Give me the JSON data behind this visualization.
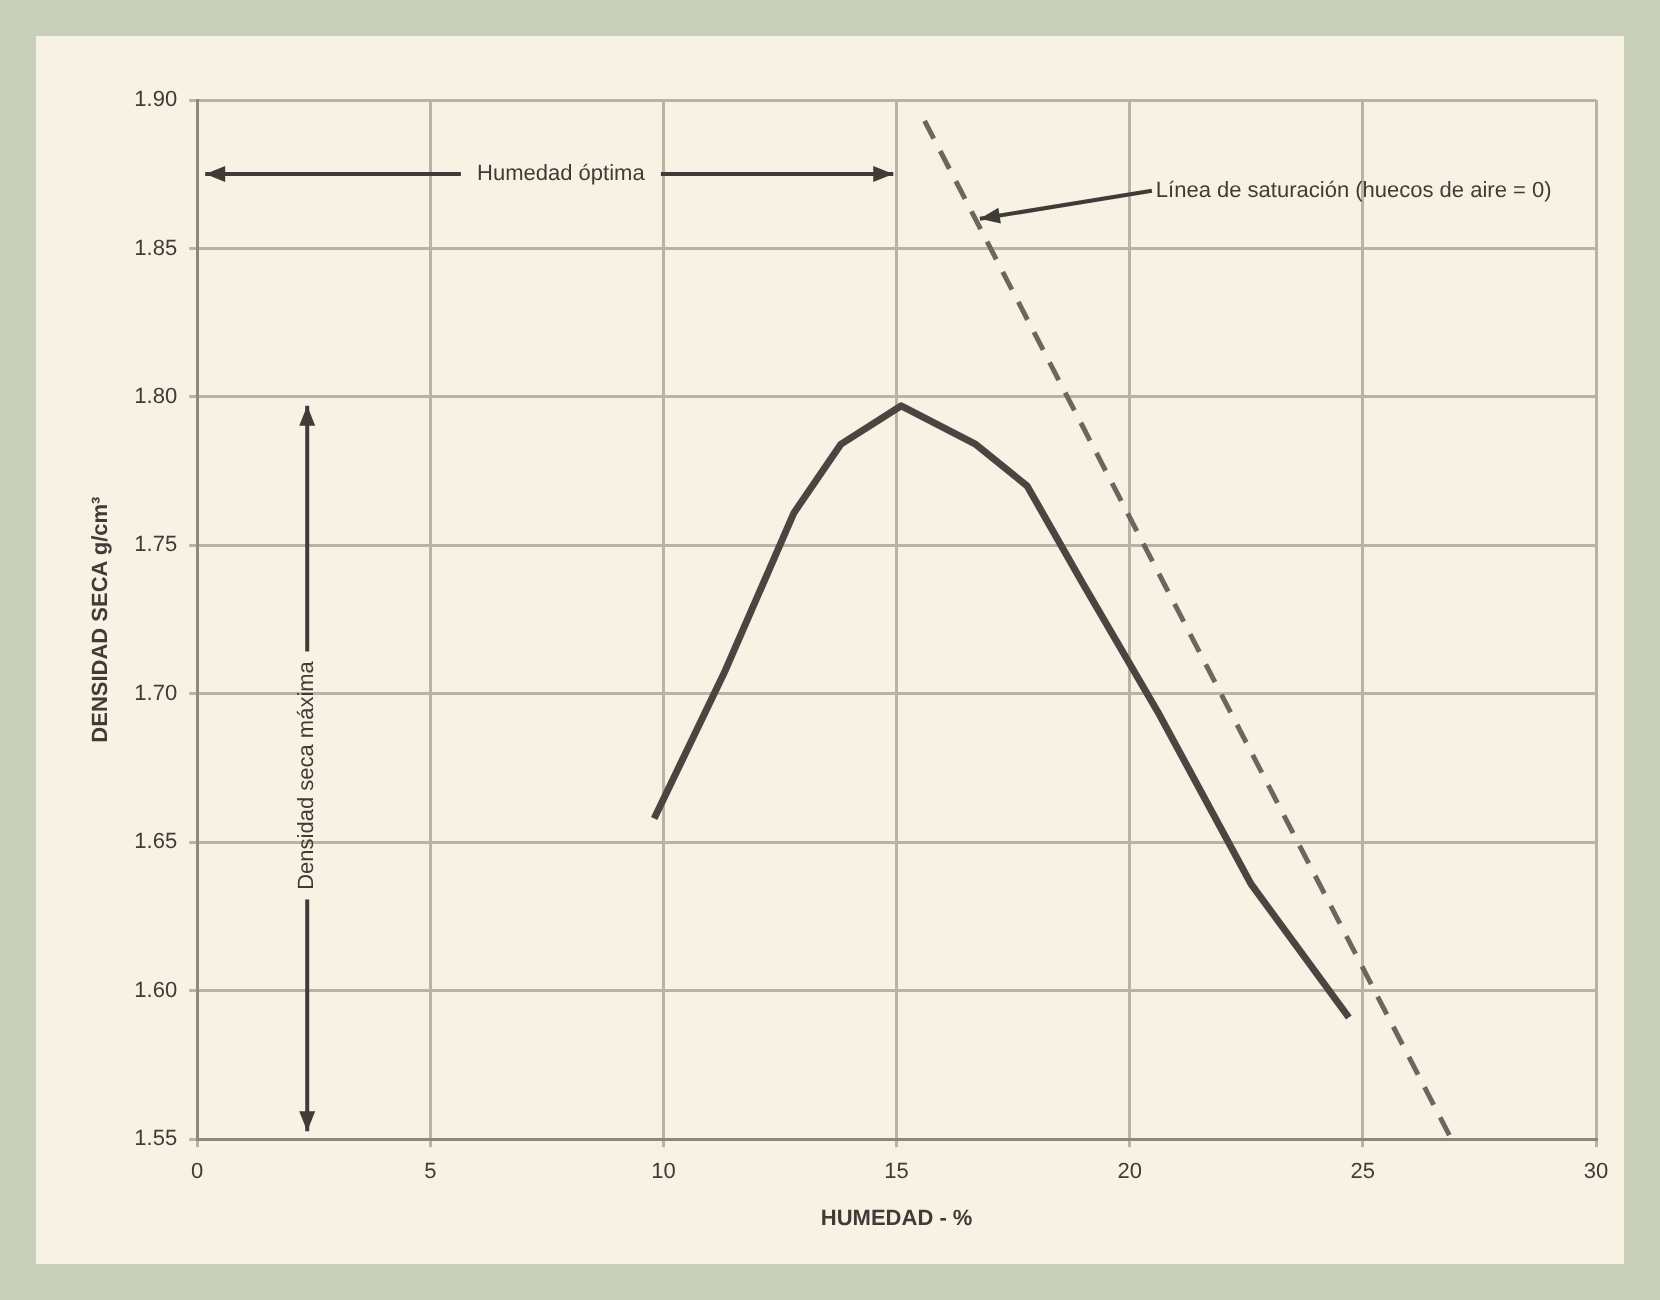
{
  "chart_data": {
    "type": "line",
    "xlabel": "HUMEDAD - %",
    "ylabel": "DENSIDAD SECA g/cm³",
    "series": [
      {
        "color": "#4a4540",
        "line_style": "solid",
        "x": [
          9.8,
          11.3,
          12.8,
          13.8,
          15.1,
          16.7,
          17.8,
          19.0,
          20.6,
          22.6,
          24.7
        ],
        "values": [
          1.658,
          1.707,
          1.761,
          1.784,
          1.797,
          1.784,
          1.77,
          1.737,
          1.694,
          1.636,
          1.591
        ]
      },
      {
        "color": "#6b6660",
        "line_style": "dashed",
        "x": [
          15.6,
          26.9
        ],
        "values": [
          1.893,
          1.55
        ]
      }
    ],
    "xlim": [
      0,
      30
    ],
    "xticks": [
      0,
      5,
      10,
      15,
      20,
      25,
      30
    ],
    "ylim": [
      1.55,
      1.9
    ],
    "yticks": [
      1.55,
      {
        "value": 1.6,
        "label": "1.60"
      },
      1.65,
      {
        "value": 1.7,
        "label": "1.70"
      },
      1.75,
      {
        "value": 1.8,
        "label": "1.80"
      },
      1.85,
      {
        "value": 1.9,
        "label": "1.90"
      }
    ],
    "grid": true,
    "legend": false,
    "marker": "none",
    "annotations": [
      "Humedad óptima",
      {
        "text": "Línea de saturación (huecos de aire = 0)",
        "x": 16.7,
        "y": 1.86
      },
      "Densidad seca máxima"
    ]
  }
}
